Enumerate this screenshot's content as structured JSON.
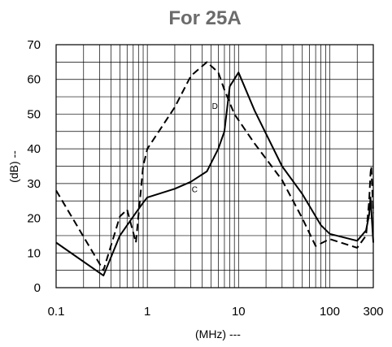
{
  "chart_data": {
    "type": "line",
    "title": "For 25A",
    "xlabel": "(MHz) ---",
    "ylabel": "(dB) --",
    "xscale": "log",
    "xlim": [
      0.1,
      300
    ],
    "ylim": [
      0,
      70
    ],
    "grid": true,
    "legend": "none",
    "x_ticks": [
      {
        "value": 0.1,
        "label": "0.1"
      },
      {
        "value": 1,
        "label": "1"
      },
      {
        "value": 10,
        "label": "10"
      },
      {
        "value": 100,
        "label": "100"
      },
      {
        "value": 300,
        "label": "300"
      }
    ],
    "y_ticks": [
      0,
      10,
      20,
      30,
      40,
      50,
      60,
      70
    ],
    "series": [
      {
        "name": "C",
        "style": "solid",
        "label_at": [
          3.3,
          27.5
        ],
        "points": [
          [
            0.1,
            13
          ],
          [
            0.33,
            3.5
          ],
          [
            0.5,
            15
          ],
          [
            0.7,
            20.5
          ],
          [
            0.9,
            24.5
          ],
          [
            1.0,
            26
          ],
          [
            2,
            28.5
          ],
          [
            3,
            30.5
          ],
          [
            4.5,
            33.5
          ],
          [
            6,
            40
          ],
          [
            7,
            45
          ],
          [
            8,
            58
          ],
          [
            10,
            62
          ],
          [
            15,
            51
          ],
          [
            30,
            35
          ],
          [
            50,
            27
          ],
          [
            80,
            18
          ],
          [
            100,
            15.5
          ],
          [
            200,
            13.5
          ],
          [
            250,
            16.5
          ],
          [
            270,
            21
          ],
          [
            280,
            26
          ],
          [
            300,
            13
          ]
        ]
      },
      {
        "name": "D",
        "style": "dashed",
        "label_at": [
          5.5,
          51.5
        ],
        "points": [
          [
            0.1,
            28
          ],
          [
            0.33,
            5
          ],
          [
            0.5,
            20.5
          ],
          [
            0.6,
            22.5
          ],
          [
            0.75,
            13
          ],
          [
            0.9,
            35
          ],
          [
            1.0,
            40
          ],
          [
            2,
            52
          ],
          [
            3,
            61
          ],
          [
            4.5,
            65
          ],
          [
            6,
            62
          ],
          [
            7,
            57
          ],
          [
            9,
            50
          ],
          [
            15,
            41.5
          ],
          [
            30,
            31
          ],
          [
            50,
            20
          ],
          [
            70,
            12
          ],
          [
            100,
            14
          ],
          [
            200,
            11.5
          ],
          [
            250,
            15
          ],
          [
            270,
            25
          ],
          [
            280,
            33
          ],
          [
            285,
            35
          ],
          [
            300,
            21.5
          ]
        ]
      }
    ]
  }
}
